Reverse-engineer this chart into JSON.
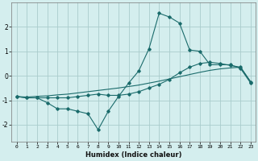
{
  "xlabel": "Humidex (Indice chaleur)",
  "ylabel": "",
  "bg_color": "#d4eeee",
  "grid_color": "#aacccc",
  "line_color": "#1a6b6b",
  "xlim": [
    -0.5,
    23.5
  ],
  "ylim": [
    -2.7,
    3.0
  ],
  "yticks": [
    -2,
    -1,
    0,
    1,
    2
  ],
  "xticks": [
    0,
    1,
    2,
    3,
    4,
    5,
    6,
    7,
    8,
    9,
    10,
    11,
    12,
    13,
    14,
    15,
    16,
    17,
    18,
    19,
    20,
    21,
    22,
    23
  ],
  "line1_x": [
    0,
    1,
    2,
    3,
    4,
    5,
    6,
    7,
    8,
    9,
    10,
    11,
    12,
    13,
    14,
    15,
    16,
    17,
    18,
    19,
    20,
    21,
    22,
    23
  ],
  "line1_y": [
    -0.85,
    -0.9,
    -0.9,
    -1.1,
    -1.35,
    -1.35,
    -1.45,
    -1.55,
    -2.2,
    -1.45,
    -0.85,
    -0.3,
    0.2,
    1.1,
    2.55,
    2.4,
    2.15,
    1.05,
    1.0,
    0.45,
    0.45,
    0.45,
    0.3,
    -0.3
  ],
  "line2_x": [
    0,
    1,
    2,
    3,
    4,
    5,
    6,
    7,
    8,
    9,
    10,
    11,
    12,
    13,
    14,
    15,
    16,
    17,
    18,
    19,
    20,
    21,
    22,
    23
  ],
  "line2_y": [
    -0.85,
    -0.9,
    -0.9,
    -0.9,
    -0.9,
    -0.9,
    -0.85,
    -0.8,
    -0.75,
    -0.8,
    -0.8,
    -0.75,
    -0.65,
    -0.5,
    -0.35,
    -0.15,
    0.12,
    0.35,
    0.5,
    0.55,
    0.5,
    0.42,
    0.35,
    -0.25
  ],
  "line3_x": [
    0,
    1,
    2,
    3,
    4,
    5,
    6,
    7,
    8,
    9,
    10,
    11,
    12,
    13,
    14,
    15,
    16,
    17,
    18,
    19,
    20,
    21,
    22,
    23
  ],
  "line3_y": [
    -0.85,
    -0.87,
    -0.84,
    -0.82,
    -0.78,
    -0.75,
    -0.7,
    -0.65,
    -0.6,
    -0.55,
    -0.5,
    -0.44,
    -0.38,
    -0.3,
    -0.22,
    -0.13,
    -0.04,
    0.05,
    0.14,
    0.22,
    0.28,
    0.32,
    0.35,
    -0.25
  ]
}
